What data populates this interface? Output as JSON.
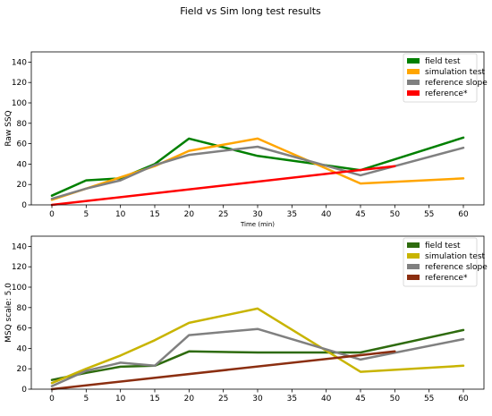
{
  "figure": {
    "title": "Field vs Sim long test results"
  },
  "chart_data": [
    {
      "type": "line",
      "xlabel": "Time (min)",
      "ylabel": "Raw SSQ",
      "xlim": [
        -3,
        63
      ],
      "ylim": [
        0,
        150
      ],
      "xticks": [
        0,
        5,
        10,
        15,
        20,
        25,
        30,
        35,
        40,
        45,
        50,
        55,
        60
      ],
      "yticks": [
        0,
        20,
        40,
        60,
        80,
        100,
        120,
        140
      ],
      "grid": false,
      "legend_position": "top-right",
      "series": [
        {
          "name": "field test",
          "color": "#008000",
          "x": [
            0,
            5,
            10,
            15,
            20,
            30,
            45,
            60
          ],
          "y": [
            9,
            24,
            26,
            40,
            65,
            48,
            34,
            66
          ]
        },
        {
          "name": "simulation test",
          "color": "#ffa500",
          "x": [
            0,
            5,
            10,
            15,
            20,
            30,
            45,
            60
          ],
          "y": [
            5,
            16,
            27,
            38,
            53,
            65,
            21,
            26
          ]
        },
        {
          "name": "reference slope",
          "color": "#808080",
          "x": [
            0,
            5,
            10,
            15,
            20,
            30,
            45,
            60
          ],
          "y": [
            6,
            16,
            24,
            39,
            49,
            57,
            29,
            56
          ]
        },
        {
          "name": "reference*",
          "color": "#ff0000",
          "x": [
            0,
            50
          ],
          "y": [
            0,
            38
          ]
        }
      ]
    },
    {
      "type": "line",
      "xlabel": "",
      "ylabel": "MSQ scale: 5.0",
      "xlim": [
        -3,
        63
      ],
      "ylim": [
        0,
        150
      ],
      "xticks": [
        0,
        5,
        10,
        15,
        20,
        25,
        30,
        35,
        40,
        45,
        50,
        55,
        60
      ],
      "yticks": [
        0,
        20,
        40,
        60,
        80,
        100,
        120,
        140
      ],
      "grid": false,
      "legend_position": "top-right",
      "series": [
        {
          "name": "field test",
          "color": "#2e6b0e",
          "x": [
            0,
            5,
            10,
            15,
            20,
            30,
            45,
            60
          ],
          "y": [
            9,
            16,
            22,
            23,
            37,
            36,
            36,
            58
          ]
        },
        {
          "name": "simulation test",
          "color": "#c8b400",
          "x": [
            0,
            5,
            10,
            15,
            20,
            30,
            45,
            60
          ],
          "y": [
            6,
            20,
            33,
            48,
            65,
            79,
            17,
            23
          ]
        },
        {
          "name": "reference slope",
          "color": "#808080",
          "x": [
            0,
            5,
            10,
            15,
            20,
            30,
            45,
            60
          ],
          "y": [
            3,
            18,
            26,
            23,
            53,
            59,
            29,
            49
          ]
        },
        {
          "name": "reference*",
          "color": "#8b2e10",
          "x": [
            0,
            50
          ],
          "y": [
            0,
            37
          ]
        }
      ]
    }
  ]
}
